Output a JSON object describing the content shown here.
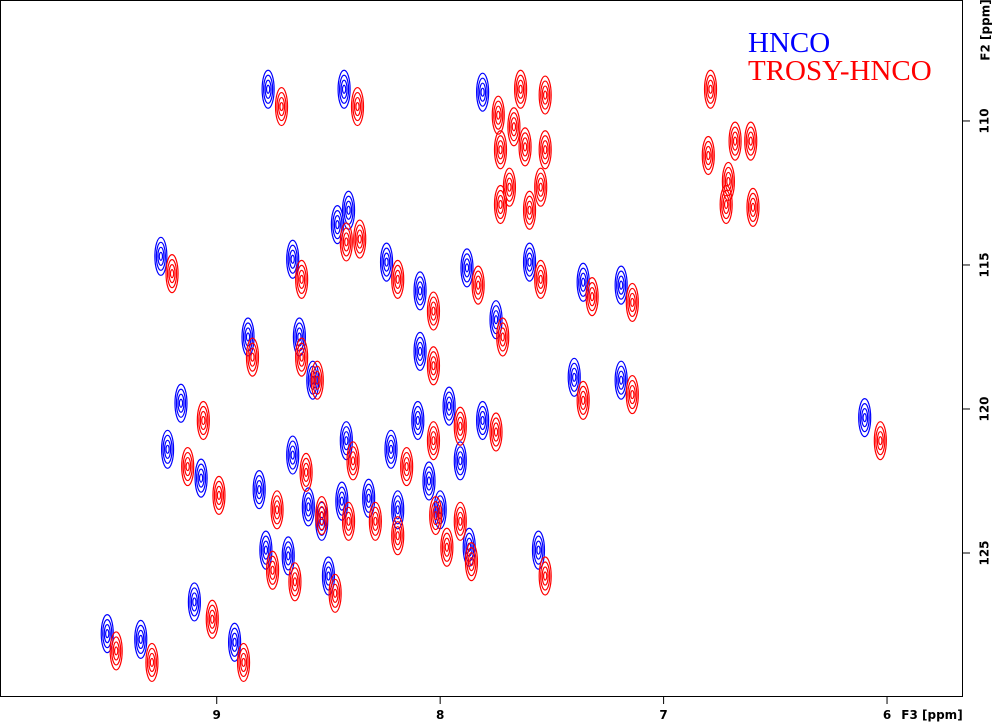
{
  "chart_data": {
    "type": "contour",
    "x_label": "F3 [ppm]",
    "y_label": "F2 [ppm]",
    "xlim": [
      9.97,
      5.66
    ],
    "ylim": [
      105.8,
      130.0
    ],
    "xticks": [
      9,
      8,
      7,
      6
    ],
    "yticks": [
      110,
      115,
      120,
      125
    ],
    "series": [
      {
        "name": "HNCO",
        "color": "#0000ff",
        "x": [
          8.77,
          8.43,
          7.81,
          9.25,
          8.66,
          8.46,
          8.41,
          8.24,
          8.09,
          7.88,
          7.6,
          7.36,
          7.19,
          8.86,
          8.63,
          7.75,
          8.09,
          9.16,
          8.57,
          7.4,
          7.19,
          9.22,
          8.66,
          8.42,
          8.22,
          8.1,
          7.96,
          7.81,
          9.07,
          8.81,
          8.05,
          7.91,
          8.32,
          8.19,
          8.59,
          8.53,
          8.44,
          8.0,
          8.78,
          8.68,
          8.5,
          7.56,
          7.87,
          9.1,
          9.49,
          9.34,
          8.92,
          6.1
        ],
        "y": [
          108.9,
          108.9,
          109.0,
          114.7,
          114.8,
          113.6,
          113.1,
          114.9,
          115.9,
          115.1,
          114.9,
          115.6,
          115.7,
          117.5,
          117.5,
          116.9,
          118.0,
          119.8,
          119.0,
          118.9,
          119.0,
          121.4,
          121.6,
          121.1,
          121.4,
          120.4,
          119.9,
          120.4,
          122.4,
          122.8,
          122.5,
          121.8,
          123.1,
          123.5,
          123.4,
          123.9,
          123.2,
          123.5,
          124.9,
          125.1,
          125.8,
          124.9,
          124.8,
          126.7,
          127.8,
          128.0,
          128.1,
          120.3
        ]
      },
      {
        "name": "TROSY-HNCO",
        "color": "#ff0000",
        "x": [
          8.71,
          8.37,
          7.74,
          7.64,
          7.53,
          7.67,
          7.62,
          7.53,
          7.73,
          7.69,
          7.6,
          7.73,
          7.55,
          6.79,
          6.8,
          6.68,
          6.61,
          6.71,
          6.6,
          6.72,
          9.2,
          8.62,
          8.42,
          8.36,
          8.19,
          8.03,
          7.83,
          7.55,
          7.32,
          7.14,
          8.84,
          8.62,
          7.72,
          8.03,
          9.06,
          8.55,
          7.36,
          7.14,
          9.13,
          8.6,
          8.39,
          8.15,
          8.03,
          7.91,
          7.75,
          8.99,
          8.73,
          8.53,
          8.41,
          8.29,
          8.19,
          8.02,
          7.97,
          7.91,
          7.86,
          8.75,
          8.65,
          8.47,
          7.53,
          9.02,
          9.45,
          9.29,
          8.88,
          6.03
        ],
        "y": [
          109.5,
          109.5,
          109.8,
          108.9,
          109.1,
          110.2,
          110.9,
          111.0,
          111.0,
          112.3,
          113.1,
          112.9,
          112.3,
          108.9,
          111.2,
          110.7,
          110.7,
          112.1,
          113.0,
          112.9,
          115.3,
          115.5,
          114.2,
          114.1,
          115.5,
          116.6,
          115.7,
          115.5,
          116.1,
          116.3,
          118.2,
          118.2,
          117.5,
          118.5,
          120.4,
          119.0,
          119.7,
          119.5,
          122.0,
          122.2,
          121.8,
          122.0,
          121.1,
          120.6,
          120.8,
          123.0,
          123.5,
          123.7,
          123.9,
          123.9,
          124.4,
          123.7,
          124.8,
          123.9,
          125.3,
          125.6,
          126.0,
          126.4,
          125.8,
          127.3,
          128.4,
          128.8,
          128.8,
          121.1
        ]
      }
    ]
  }
}
